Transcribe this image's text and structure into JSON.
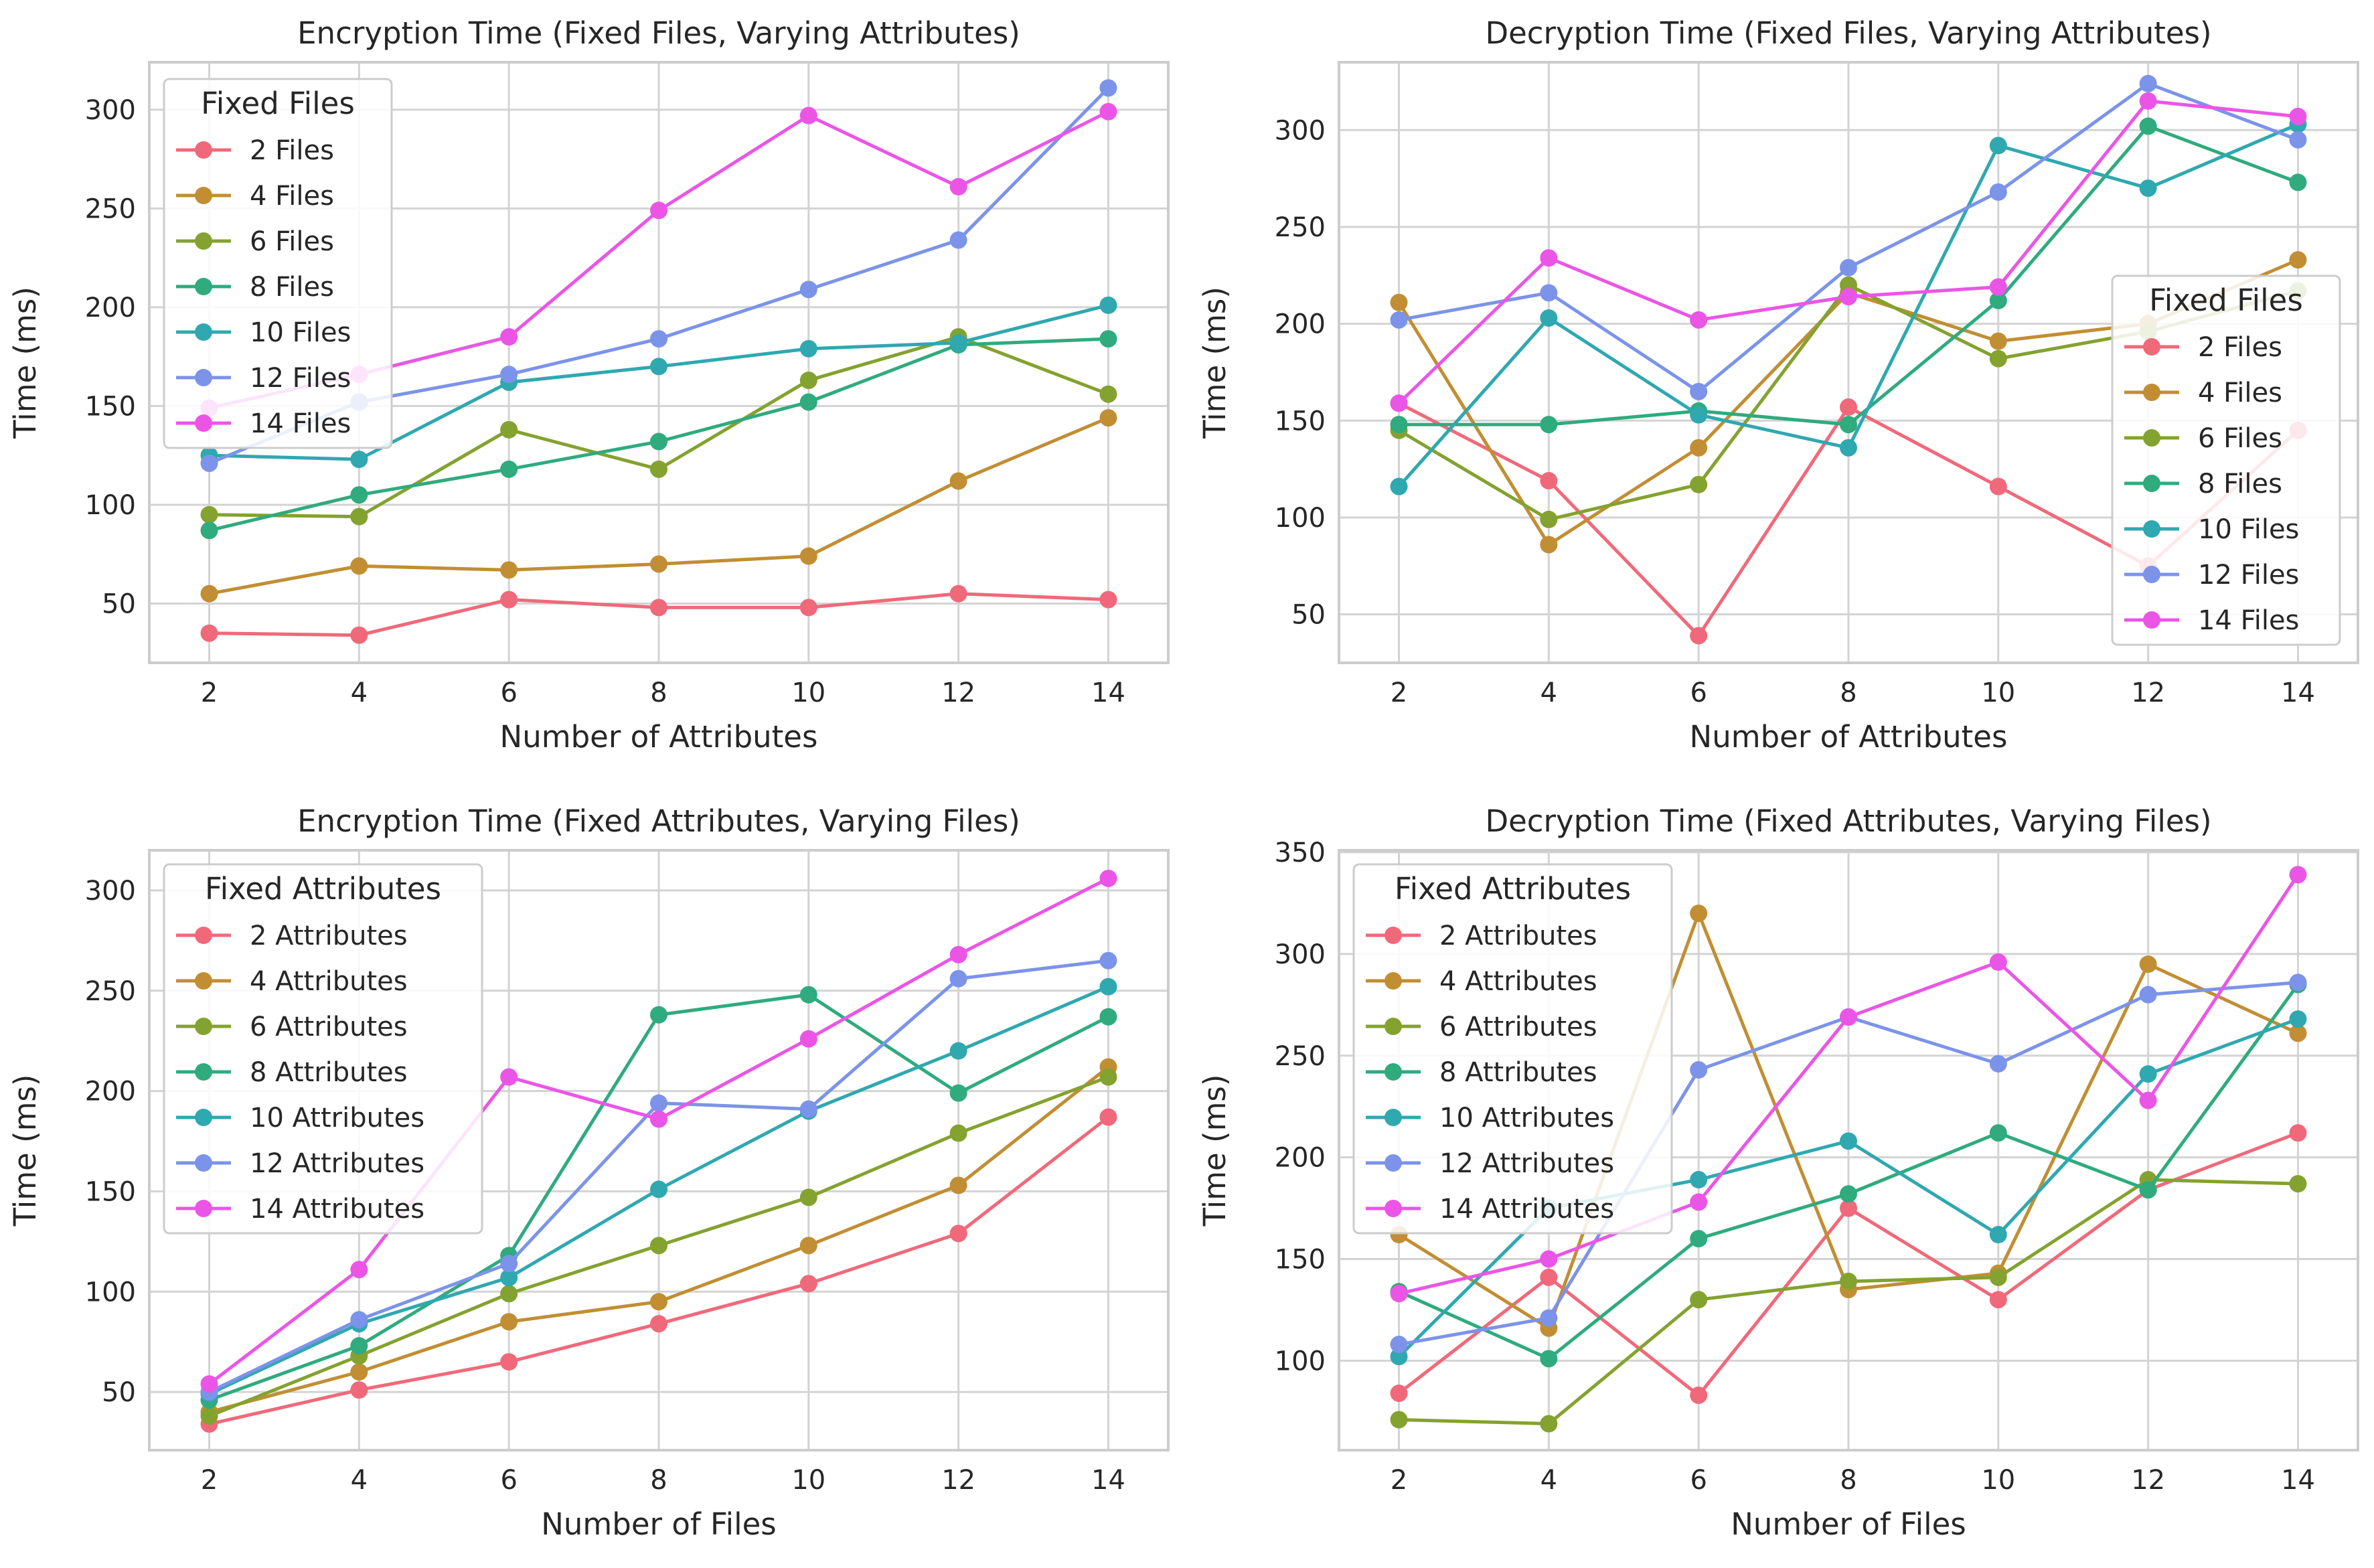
{
  "palette": [
    "#f0697a",
    "#c18e33",
    "#84a22f",
    "#2fab7e",
    "#2fa8b0",
    "#7c93ea",
    "#eb55e6"
  ],
  "chart_data": [
    {
      "type": "line",
      "title": "Encryption Time (Fixed Files, Varying Attributes)",
      "xlabel": "Number of Attributes",
      "ylabel": "Time (ms)",
      "x": [
        2,
        4,
        6,
        8,
        10,
        12,
        14
      ],
      "xticks": [
        "2",
        "4",
        "6",
        "8",
        "10",
        "12",
        "14"
      ],
      "yticks": [
        "50",
        "100",
        "150",
        "200",
        "250",
        "300"
      ],
      "ylim": [
        20,
        324
      ],
      "grid": true,
      "legend": {
        "title": "Fixed Files",
        "placement": "upper-left"
      },
      "series": [
        {
          "name": "2 Files",
          "values": [
            35,
            34,
            52,
            48,
            48,
            55,
            52
          ]
        },
        {
          "name": "4 Files",
          "values": [
            55,
            69,
            67,
            70,
            74,
            112,
            144
          ]
        },
        {
          "name": "6 Files",
          "values": [
            95,
            94,
            138,
            118,
            163,
            185,
            156
          ]
        },
        {
          "name": "8 Files",
          "values": [
            87,
            105,
            118,
            132,
            152,
            181,
            184
          ]
        },
        {
          "name": "10 Files",
          "values": [
            125,
            123,
            162,
            170,
            179,
            182,
            201
          ]
        },
        {
          "name": "12 Files",
          "values": [
            121,
            152,
            166,
            184,
            209,
            234,
            311
          ]
        },
        {
          "name": "14 Files",
          "values": [
            149,
            166,
            185,
            249,
            297,
            261,
            299
          ]
        }
      ]
    },
    {
      "type": "line",
      "title": "Decryption Time (Fixed Files, Varying Attributes)",
      "xlabel": "Number of Attributes",
      "ylabel": "Time (ms)",
      "x": [
        2,
        4,
        6,
        8,
        10,
        12,
        14
      ],
      "xticks": [
        "2",
        "4",
        "6",
        "8",
        "10",
        "12",
        "14"
      ],
      "yticks": [
        "50",
        "100",
        "150",
        "200",
        "250",
        "300"
      ],
      "ylim": [
        25,
        335
      ],
      "grid": true,
      "legend": {
        "title": "Fixed Files",
        "placement": "lower-right"
      },
      "series": [
        {
          "name": "2 Files",
          "values": [
            159,
            119,
            39,
            157,
            116,
            75,
            145
          ]
        },
        {
          "name": "4 Files",
          "values": [
            211,
            86,
            136,
            216,
            191,
            200,
            233
          ]
        },
        {
          "name": "6 Files",
          "values": [
            145,
            99,
            117,
            220,
            182,
            196,
            217
          ]
        },
        {
          "name": "8 Files",
          "values": [
            148,
            148,
            155,
            148,
            212,
            302,
            273
          ]
        },
        {
          "name": "10 Files",
          "values": [
            116,
            203,
            153,
            136,
            292,
            270,
            303
          ]
        },
        {
          "name": "12 Files",
          "values": [
            202,
            216,
            165,
            229,
            268,
            324,
            295
          ]
        },
        {
          "name": "14 Files",
          "values": [
            159,
            234,
            202,
            214,
            219,
            315,
            307
          ]
        }
      ]
    },
    {
      "type": "line",
      "title": "Encryption Time (Fixed Attributes, Varying Files)",
      "xlabel": "Number of Files",
      "ylabel": "Time (ms)",
      "x": [
        2,
        4,
        6,
        8,
        10,
        12,
        14
      ],
      "xticks": [
        "2",
        "4",
        "6",
        "8",
        "10",
        "12",
        "14"
      ],
      "yticks": [
        "50",
        "100",
        "150",
        "200",
        "250",
        "300"
      ],
      "ylim": [
        21,
        320
      ],
      "grid": true,
      "legend": {
        "title": "Fixed Attributes",
        "placement": "upper-left"
      },
      "series": [
        {
          "name": "2 Attributes",
          "values": [
            34,
            51,
            65,
            84,
            104,
            129,
            187
          ]
        },
        {
          "name": "4 Attributes",
          "values": [
            40,
            60,
            85,
            95,
            123,
            153,
            212
          ]
        },
        {
          "name": "6 Attributes",
          "values": [
            38,
            68,
            99,
            123,
            147,
            179,
            207
          ]
        },
        {
          "name": "8 Attributes",
          "values": [
            46,
            73,
            118,
            238,
            248,
            199,
            237
          ]
        },
        {
          "name": "10 Attributes",
          "values": [
            49,
            84,
            107,
            151,
            190,
            220,
            252
          ]
        },
        {
          "name": "12 Attributes",
          "values": [
            50,
            86,
            114,
            194,
            191,
            256,
            265
          ]
        },
        {
          "name": "14 Attributes",
          "values": [
            54,
            111,
            207,
            186,
            226,
            268,
            306
          ]
        }
      ]
    },
    {
      "type": "line",
      "title": "Decryption Time (Fixed Attributes, Varying Files)",
      "xlabel": "Number of Files",
      "ylabel": "Time (ms)",
      "x": [
        2,
        4,
        6,
        8,
        10,
        12,
        14
      ],
      "xticks": [
        "2",
        "4",
        "6",
        "8",
        "10",
        "12",
        "14"
      ],
      "yticks": [
        "100",
        "150",
        "200",
        "250",
        "300",
        "350"
      ],
      "ylim": [
        56,
        351
      ],
      "grid": true,
      "legend": {
        "title": "Fixed Attributes",
        "placement": "upper-left"
      },
      "series": [
        {
          "name": "2 Attributes",
          "values": [
            84,
            141,
            83,
            175,
            130,
            184,
            212
          ]
        },
        {
          "name": "4 Attributes",
          "values": [
            162,
            116,
            320,
            135,
            143,
            295,
            261
          ]
        },
        {
          "name": "6 Attributes",
          "values": [
            71,
            69,
            130,
            139,
            141,
            189,
            187
          ]
        },
        {
          "name": "8 Attributes",
          "values": [
            134,
            101,
            160,
            182,
            212,
            184,
            285
          ]
        },
        {
          "name": "10 Attributes",
          "values": [
            102,
            175,
            189,
            208,
            162,
            241,
            268
          ]
        },
        {
          "name": "12 Attributes",
          "values": [
            108,
            121,
            243,
            269,
            246,
            280,
            286
          ]
        },
        {
          "name": "14 Attributes",
          "values": [
            133,
            150,
            178,
            269,
            296,
            228,
            339
          ]
        }
      ]
    }
  ]
}
